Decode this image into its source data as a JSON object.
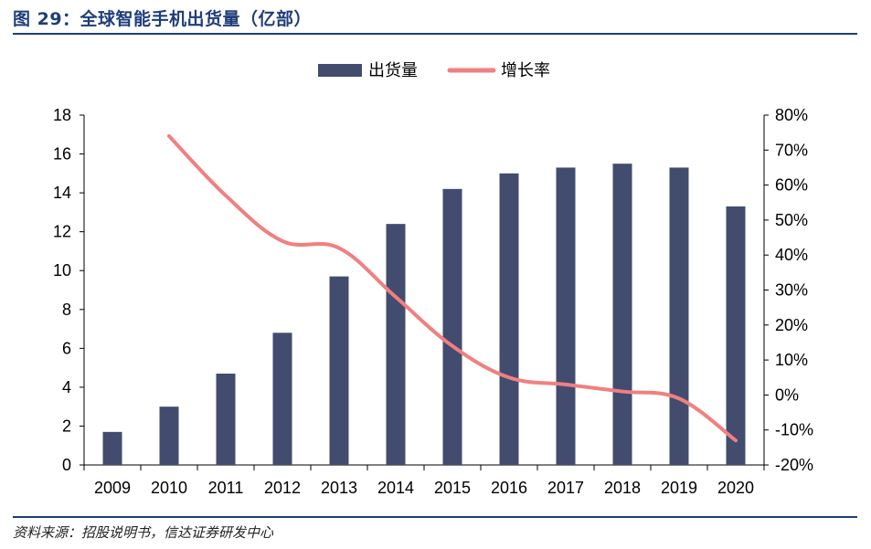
{
  "header": {
    "title": "图 29：全球智能手机出货量（亿部）"
  },
  "footer": {
    "source": "资料来源：招股说明书，信达证券研发中心"
  },
  "colors": {
    "bar": "#424c6e",
    "line": "#f08080",
    "axis": "#000000",
    "title": "#1f3d7a"
  },
  "chart_data": {
    "type": "bar",
    "title": "全球智能手机出货量（亿部）",
    "categories": [
      "2009",
      "2010",
      "2011",
      "2012",
      "2013",
      "2014",
      "2015",
      "2016",
      "2017",
      "2018",
      "2019",
      "2020"
    ],
    "series": [
      {
        "name": "出货量",
        "type": "bar",
        "axis": "left",
        "values": [
          1.7,
          3.0,
          4.7,
          6.8,
          9.7,
          12.4,
          14.2,
          15.0,
          15.3,
          15.5,
          15.3,
          13.3
        ]
      },
      {
        "name": "增长率",
        "type": "line",
        "axis": "right",
        "unit": "%",
        "values": [
          null,
          74,
          57,
          44,
          42,
          28,
          14,
          5,
          3,
          1,
          -1,
          -13
        ]
      }
    ],
    "y_left": {
      "min": 0,
      "max": 18,
      "ticks": [
        "0",
        "2",
        "4",
        "6",
        "8",
        "10",
        "12",
        "14",
        "16",
        "18"
      ]
    },
    "y_right": {
      "min": -20,
      "max": 80,
      "ticks": [
        "-20%",
        "-10%",
        "0%",
        "10%",
        "20%",
        "30%",
        "40%",
        "50%",
        "60%",
        "70%",
        "80%"
      ]
    },
    "legend": {
      "placement": "top-center",
      "entries": [
        "出货量",
        "增长率"
      ]
    },
    "grid": false
  }
}
